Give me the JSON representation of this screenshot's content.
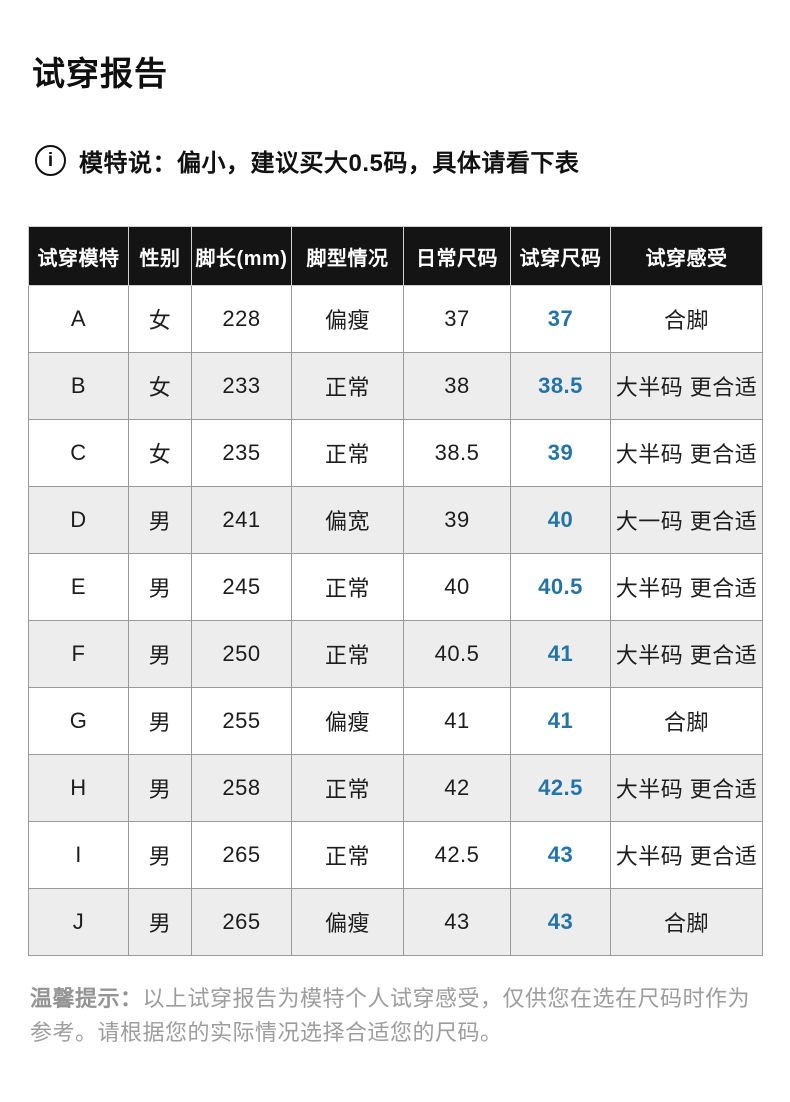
{
  "page": {
    "title": "试穿报告",
    "notice": "模特说：偏小，建议买大0.5码，具体请看下表",
    "info_icon_glyph": "i",
    "footer": {
      "label": "温馨提示：",
      "text": "以上试穿报告为模特个人试穿感受，仅供您在选在尺码时作为参考。请根据您的实际情况选择合适您的尺码。"
    }
  },
  "colors": {
    "accent_blue": "#2474a7",
    "header_bg": "#141414",
    "row_alt_bg": "#ededed",
    "border": "#9a9a9a",
    "muted_text": "#9d9d9d"
  },
  "table": {
    "headers": [
      "试穿模特",
      "性别",
      "脚长(mm)",
      "脚型情况",
      "日常尺码",
      "试穿尺码",
      "试穿感受"
    ],
    "fit_size_column_index": 5,
    "rows": [
      [
        "A",
        "女",
        "228",
        "偏瘦",
        "37",
        "37",
        "合脚"
      ],
      [
        "B",
        "女",
        "233",
        "正常",
        "38",
        "38.5",
        "大半码 更合适"
      ],
      [
        "C",
        "女",
        "235",
        "正常",
        "38.5",
        "39",
        "大半码 更合适"
      ],
      [
        "D",
        "男",
        "241",
        "偏宽",
        "39",
        "40",
        "大一码 更合适"
      ],
      [
        "E",
        "男",
        "245",
        "正常",
        "40",
        "40.5",
        "大半码 更合适"
      ],
      [
        "F",
        "男",
        "250",
        "正常",
        "40.5",
        "41",
        "大半码 更合适"
      ],
      [
        "G",
        "男",
        "255",
        "偏瘦",
        "41",
        "41",
        "合脚"
      ],
      [
        "H",
        "男",
        "258",
        "正常",
        "42",
        "42.5",
        "大半码 更合适"
      ],
      [
        "I",
        "男",
        "265",
        "正常",
        "42.5",
        "43",
        "大半码 更合适"
      ],
      [
        "J",
        "男",
        "265",
        "偏瘦",
        "43",
        "43",
        "合脚"
      ]
    ]
  }
}
